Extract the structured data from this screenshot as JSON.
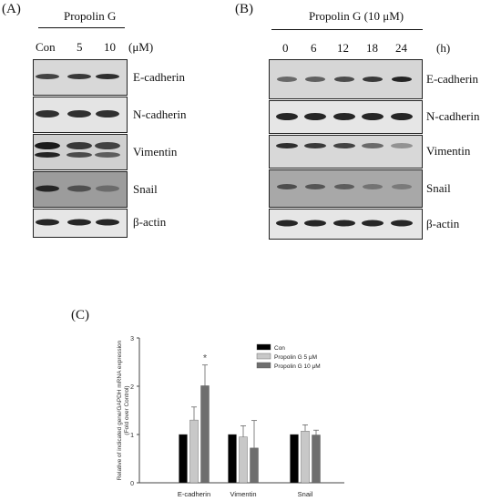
{
  "panel_a": {
    "label": "(A)",
    "treatment": "Propolin G",
    "lanes": [
      "Con",
      "5",
      "10"
    ],
    "unit": "(μM)",
    "blots": [
      {
        "name": "E-cadherin"
      },
      {
        "name": "N-cadherin"
      },
      {
        "name": "Vimentin"
      },
      {
        "name": "Snail"
      },
      {
        "name": "β-actin"
      }
    ]
  },
  "panel_b": {
    "label": "(B)",
    "treatment": "Propolin G (10 μM)",
    "lanes": [
      "0",
      "6",
      "12",
      "18",
      "24"
    ],
    "unit": "(h)",
    "blots": [
      {
        "name": "E-cadherin"
      },
      {
        "name": "N-cadherin"
      },
      {
        "name": "Vimentin"
      },
      {
        "name": "Snail"
      },
      {
        "name": "β-actin"
      }
    ]
  },
  "panel_c": {
    "label": "(C)"
  },
  "chart_data": {
    "type": "bar",
    "categories": [
      "E-cadherin",
      "Vimentin",
      "Snail"
    ],
    "series": [
      {
        "name": "Con",
        "values": [
          1.0,
          1.0,
          1.0
        ],
        "errors": [
          0,
          0,
          0
        ],
        "color": "#000000"
      },
      {
        "name": "Propolin G 5 μM",
        "values": [
          1.3,
          0.95,
          1.07
        ],
        "errors": [
          0.27,
          0.23,
          0.13
        ],
        "color": "#c8c8c8"
      },
      {
        "name": "Propolin G 10 μM",
        "values": [
          2.01,
          0.72,
          0.99
        ],
        "errors": [
          0.43,
          0.57,
          0.1
        ],
        "color": "#6e6e6e"
      }
    ],
    "ylabel": "Relative of indicated gene/GAPDH mRNA expression\n(Fold over Control)",
    "ylim": [
      0,
      3
    ],
    "yticks": [
      "0",
      "1",
      "2",
      "3"
    ],
    "annotations": [
      {
        "category": "E-cadherin",
        "series": "Propolin G 10 μM",
        "text": "*"
      }
    ],
    "legend": "top-right",
    "grid": false
  }
}
